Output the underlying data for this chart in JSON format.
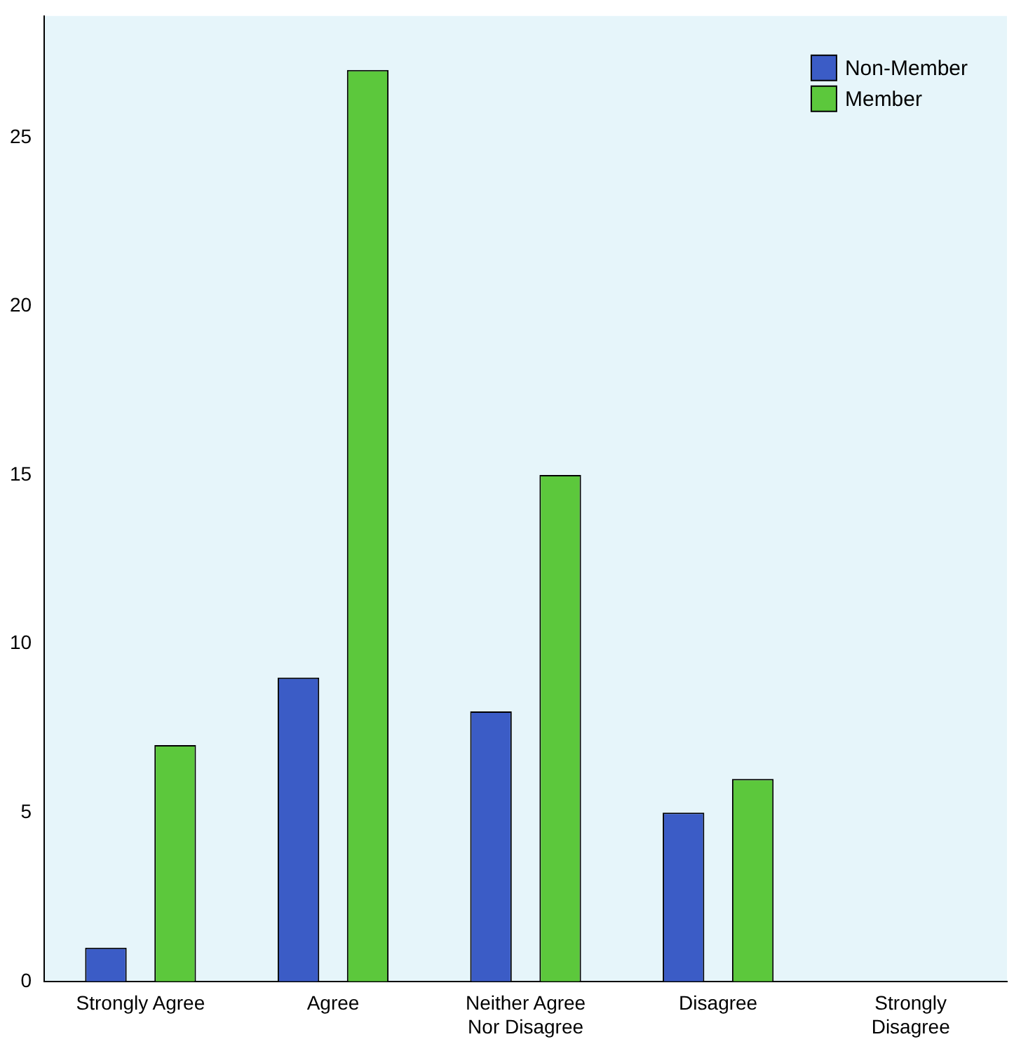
{
  "chart_data": {
    "type": "bar",
    "categories": [
      "Strongly Agree",
      "Agree",
      "Neither Agree Nor Disagree",
      "Disagree",
      "Strongly Disagree"
    ],
    "series": [
      {
        "name": "Non-Member",
        "color": "#3b5cc6",
        "values": [
          1,
          9,
          8,
          5,
          0
        ]
      },
      {
        "name": "Member",
        "color": "#5cc83c",
        "values": [
          7,
          27,
          15,
          6,
          0
        ]
      }
    ],
    "ylim": [
      0,
      28.6
    ],
    "yticks": [
      0,
      5,
      10,
      15,
      20,
      25
    ],
    "grid": false,
    "legend": "top right"
  }
}
